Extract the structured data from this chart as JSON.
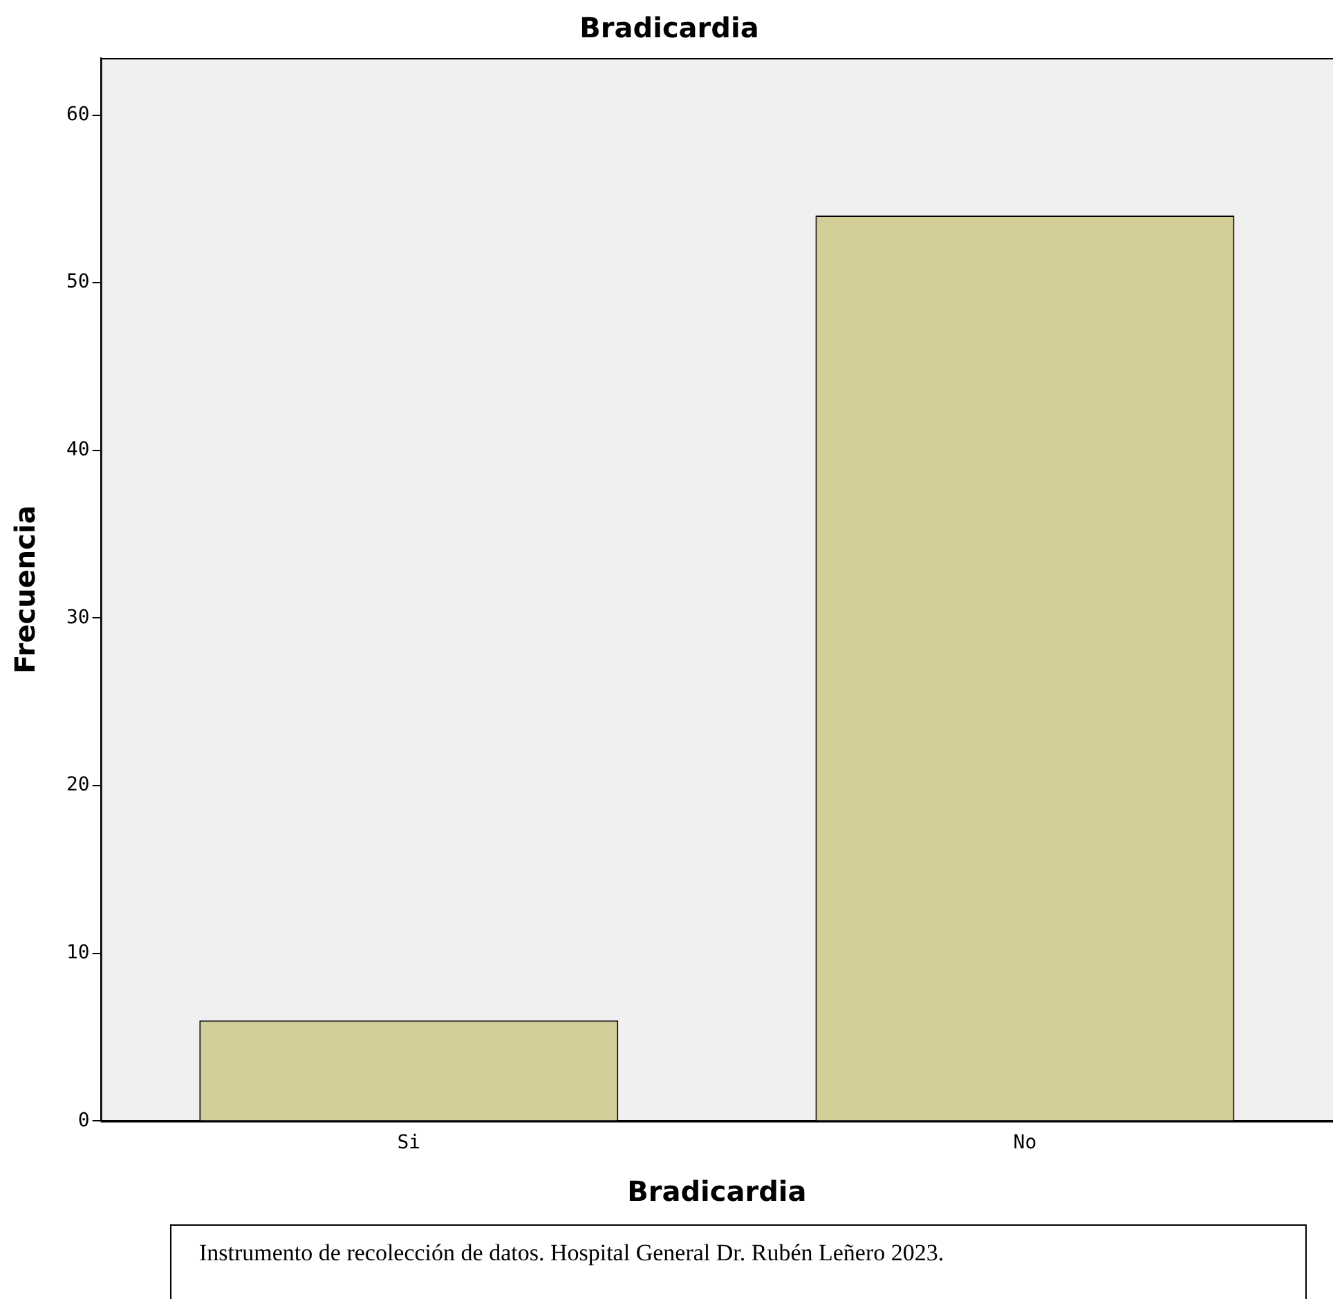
{
  "chart_data": {
    "type": "bar",
    "title": "Bradicardia",
    "xlabel": "Bradicardia",
    "ylabel": "Frecuencia",
    "categories": [
      "Si",
      "No"
    ],
    "values": [
      6,
      54
    ],
    "color": "#d3ce97",
    "ylim": [
      0,
      63.4
    ],
    "yticks": [
      0,
      10,
      20,
      30,
      40,
      50,
      60
    ],
    "grid": false,
    "legend": false,
    "annotations": [
      "Instrumento de recolección de datos. Hospital General Dr. Rubén Leñero 2023."
    ]
  }
}
